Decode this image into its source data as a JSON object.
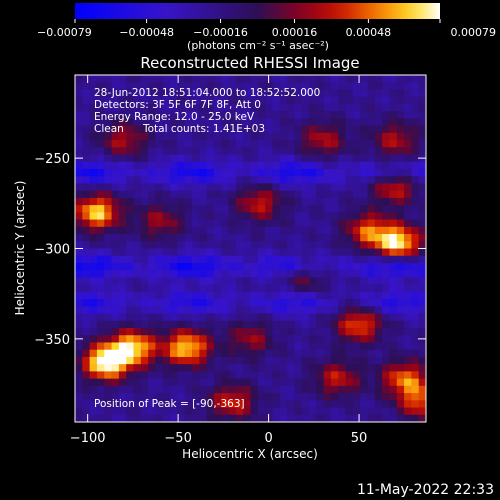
{
  "chart_data": {
    "type": "heatmap",
    "title": "Reconstructed RHESSI Image",
    "xlabel": "Heliocentric X (arcsec)",
    "ylabel": "Heliocentric Y (arcsec)",
    "xlim": [
      -107,
      87
    ],
    "ylim": [
      -396,
      -204
    ],
    "xticks": [
      -100,
      -50,
      0,
      50
    ],
    "xtick_labels": [
      "−100",
      "−50",
      "0",
      "50"
    ],
    "yticks": [
      -250,
      -300,
      -350
    ],
    "ytick_labels": [
      "−250",
      "−300",
      "−350"
    ],
    "colorbar": {
      "range": [
        -0.00079,
        0.00079
      ],
      "ticks": [
        -0.00079,
        -0.00048,
        -0.00016,
        0.00016,
        0.00048,
        0.00079
      ],
      "tick_labels": [
        "−0.00079",
        "−0.00048",
        "−0.00016",
        "0.00016",
        "0.00048",
        "0.00079"
      ],
      "unit_label": "(photons cm⁻² s⁻¹ asec⁻²)",
      "colormap": "blue-purple-red-yellow-white"
    },
    "annotations": {
      "time_range": "28-Jun-2012 18:51:04.000 to 18:52:52.000",
      "detectors": "Detectors: 3F 5F 6F 7F 8F, Att 0",
      "energy_range": "Energy Range: 12.0 - 25.0 keV",
      "clean_label": "Clean",
      "total_counts": "Total counts: 1.41E+03",
      "peak_position": "Position of Peak = [-90,-363]"
    },
    "grid": false,
    "heatmap_grid": {
      "nx": 48,
      "ny": 48
    },
    "sources": [
      {
        "x": -90,
        "y": -363,
        "amplitude": 1.0
      },
      {
        "x": -75,
        "y": -355,
        "amplitude": 0.85
      },
      {
        "x": -45,
        "y": -355,
        "amplitude": 0.85
      },
      {
        "x": -95,
        "y": -280,
        "amplitude": 0.85
      },
      {
        "x": 72,
        "y": -297,
        "amplitude": 0.9
      },
      {
        "x": 55,
        "y": -290,
        "amplitude": 0.6
      },
      {
        "x": 70,
        "y": -265,
        "amplitude": 0.6
      },
      {
        "x": 50,
        "y": -342,
        "amplitude": 0.65
      },
      {
        "x": 75,
        "y": -372,
        "amplitude": 0.65
      },
      {
        "x": 85,
        "y": -385,
        "amplitude": 0.6
      },
      {
        "x": 38,
        "y": -372,
        "amplitude": 0.5
      },
      {
        "x": -20,
        "y": -385,
        "amplitude": 0.55
      },
      {
        "x": -5,
        "y": -275,
        "amplitude": 0.5
      },
      {
        "x": -60,
        "y": -285,
        "amplitude": 0.4
      },
      {
        "x": 30,
        "y": -240,
        "amplitude": 0.45
      },
      {
        "x": 70,
        "y": -240,
        "amplitude": 0.45
      },
      {
        "x": -80,
        "y": -240,
        "amplitude": 0.45
      },
      {
        "x": 20,
        "y": -315,
        "amplitude": 0.4
      },
      {
        "x": -10,
        "y": -350,
        "amplitude": 0.4
      }
    ],
    "negative_bands": [
      {
        "y": -258,
        "amplitude": -0.55
      },
      {
        "y": -310,
        "amplitude": -0.6
      },
      {
        "y": -330,
        "amplitude": -0.45
      }
    ]
  },
  "footer": {
    "timestamp": "11-May-2022 22:33"
  }
}
